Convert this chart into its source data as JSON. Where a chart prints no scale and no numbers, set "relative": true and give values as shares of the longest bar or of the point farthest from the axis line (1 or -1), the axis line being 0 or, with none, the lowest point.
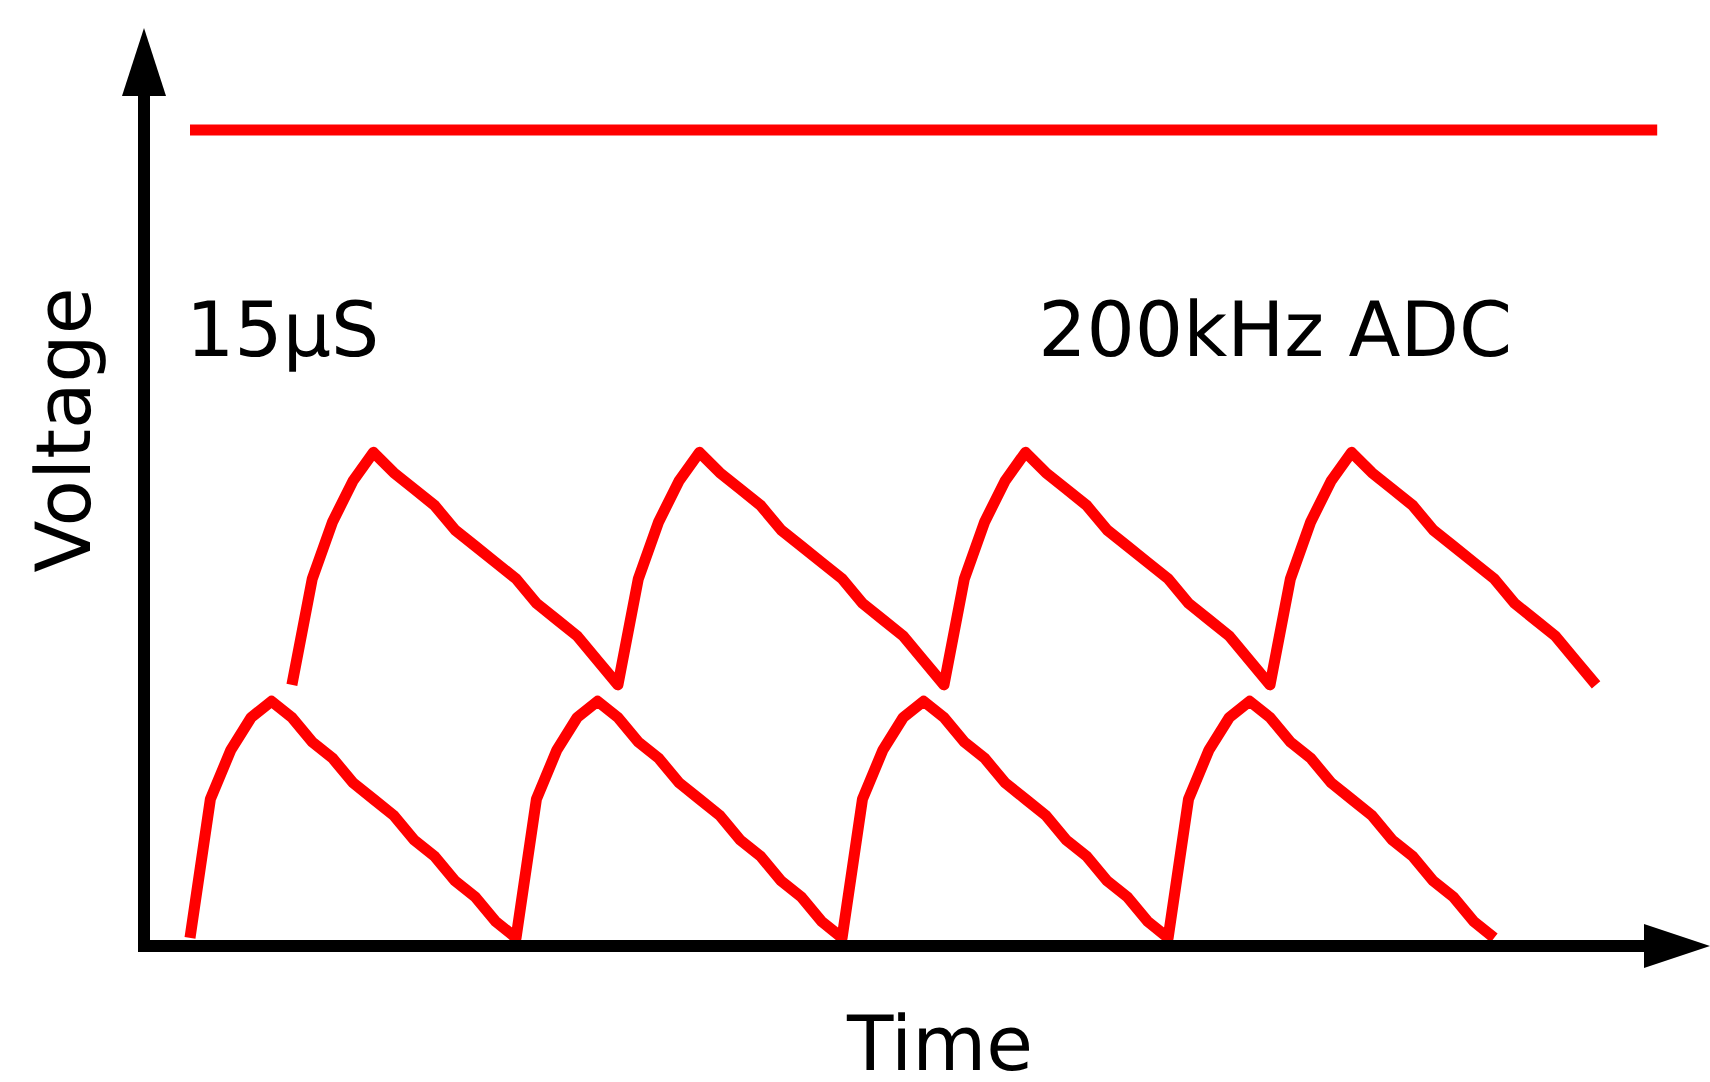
{
  "chart_data": {
    "type": "line",
    "relative": true,
    "xlabel": "Time",
    "ylabel": "Voltage",
    "line_style": "solid",
    "annotations": [
      "15μS",
      "200kHz ADC"
    ],
    "categories": [
      null,
      null,
      null,
      null,
      null,
      null,
      null,
      null,
      null,
      null,
      null,
      null,
      null,
      null,
      null,
      null,
      null,
      null,
      null,
      null,
      null,
      null,
      null,
      null,
      null,
      null,
      null,
      null,
      null,
      null,
      null,
      null,
      null,
      null,
      null,
      null,
      null,
      null,
      null,
      null,
      null,
      null,
      null,
      null,
      null,
      null,
      null,
      null,
      null,
      null,
      null,
      null,
      null,
      null,
      null,
      null,
      null,
      null,
      null,
      null,
      null,
      null,
      null,
      null,
      null,
      null,
      null,
      null,
      null,
      null,
      null,
      null,
      null
    ],
    "series": [
      {
        "color": "#ff0000",
        "values": [
          1,
          1,
          1,
          1,
          1,
          1,
          1,
          1,
          1,
          1,
          1,
          1,
          1,
          1,
          1,
          1,
          1,
          1,
          1,
          1,
          1,
          1,
          1,
          1,
          1,
          1,
          1,
          1,
          1,
          1,
          1,
          1,
          1,
          1,
          1,
          1,
          1,
          1,
          1,
          1,
          1,
          1,
          1,
          1,
          1,
          1,
          1,
          1,
          1,
          1,
          1,
          1,
          1,
          1,
          1,
          1,
          1,
          1,
          1,
          1,
          1,
          1,
          1,
          1,
          1,
          1,
          1,
          1,
          1,
          1,
          1,
          1,
          1
        ]
      },
      {
        "color": "#ff0000",
        "values": [
          null,
          null,
          null,
          null,
          null,
          0.32,
          0.45,
          0.52,
          0.57,
          0.605,
          0.58,
          0.56,
          0.54,
          0.51,
          0.49,
          0.47,
          0.45,
          0.42,
          0.4,
          0.38,
          0.35,
          0.32,
          0.45,
          0.52,
          0.57,
          0.605,
          0.58,
          0.56,
          0.54,
          0.51,
          0.49,
          0.47,
          0.45,
          0.42,
          0.4,
          0.38,
          0.35,
          0.32,
          0.45,
          0.52,
          0.57,
          0.605,
          0.58,
          0.56,
          0.54,
          0.51,
          0.49,
          0.47,
          0.45,
          0.42,
          0.4,
          0.38,
          0.35,
          0.32,
          0.45,
          0.52,
          0.57,
          0.605,
          0.58,
          0.56,
          0.54,
          0.51,
          0.49,
          0.47,
          0.45,
          0.42,
          0.4,
          0.38,
          0.35,
          0.32,
          null,
          null,
          null
        ]
      },
      {
        "color": "#ff0000",
        "values": [
          0.01,
          0.18,
          0.24,
          0.28,
          0.3,
          0.28,
          0.25,
          0.23,
          0.2,
          0.18,
          0.16,
          0.13,
          0.11,
          0.08,
          0.06,
          0.03,
          0.01,
          0.18,
          0.24,
          0.28,
          0.3,
          0.28,
          0.25,
          0.23,
          0.2,
          0.18,
          0.16,
          0.13,
          0.11,
          0.08,
          0.06,
          0.03,
          0.01,
          0.18,
          0.24,
          0.28,
          0.3,
          0.28,
          0.25,
          0.23,
          0.2,
          0.18,
          0.16,
          0.13,
          0.11,
          0.08,
          0.06,
          0.03,
          0.01,
          0.18,
          0.24,
          0.28,
          0.3,
          0.28,
          0.25,
          0.23,
          0.2,
          0.18,
          0.16,
          0.13,
          0.11,
          0.08,
          0.06,
          0.03,
          0.01,
          null,
          null,
          null,
          null,
          null,
          null,
          null,
          null
        ]
      }
    ]
  }
}
